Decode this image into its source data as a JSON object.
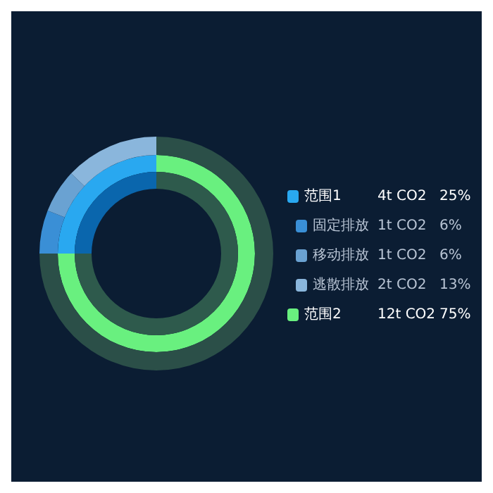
{
  "chart_data": [
    {
      "type": "donut",
      "categories": [
        "范围1",
        "范围2"
      ],
      "values": [
        25,
        75
      ],
      "colors": [
        "#29a8f0",
        "#69f07f"
      ],
      "value_labels": [
        "25%",
        "75%"
      ],
      "annotations": [
        "4t CO2",
        "12t CO2"
      ],
      "legend": "right"
    },
    {
      "type": "donut",
      "categories": [
        "固定排放",
        "移动排放",
        "逃散排放",
        null
      ],
      "values": [
        6,
        6,
        13,
        75
      ],
      "colors": [
        "#3a8fd6",
        "#6aa2d2",
        "#8ab6dc",
        "#2b4f48"
      ],
      "value_labels": [
        "6%",
        "6%",
        "13%",
        null
      ],
      "annotations": [
        "1t CO2",
        "1t CO2",
        "2t CO2"
      ],
      "legend": "right"
    },
    {
      "type": "donut",
      "categories": [
        null,
        null
      ],
      "values": [
        25,
        75
      ],
      "colors": [
        "#0a66ad",
        "#2e5a4c"
      ]
    }
  ]
}
